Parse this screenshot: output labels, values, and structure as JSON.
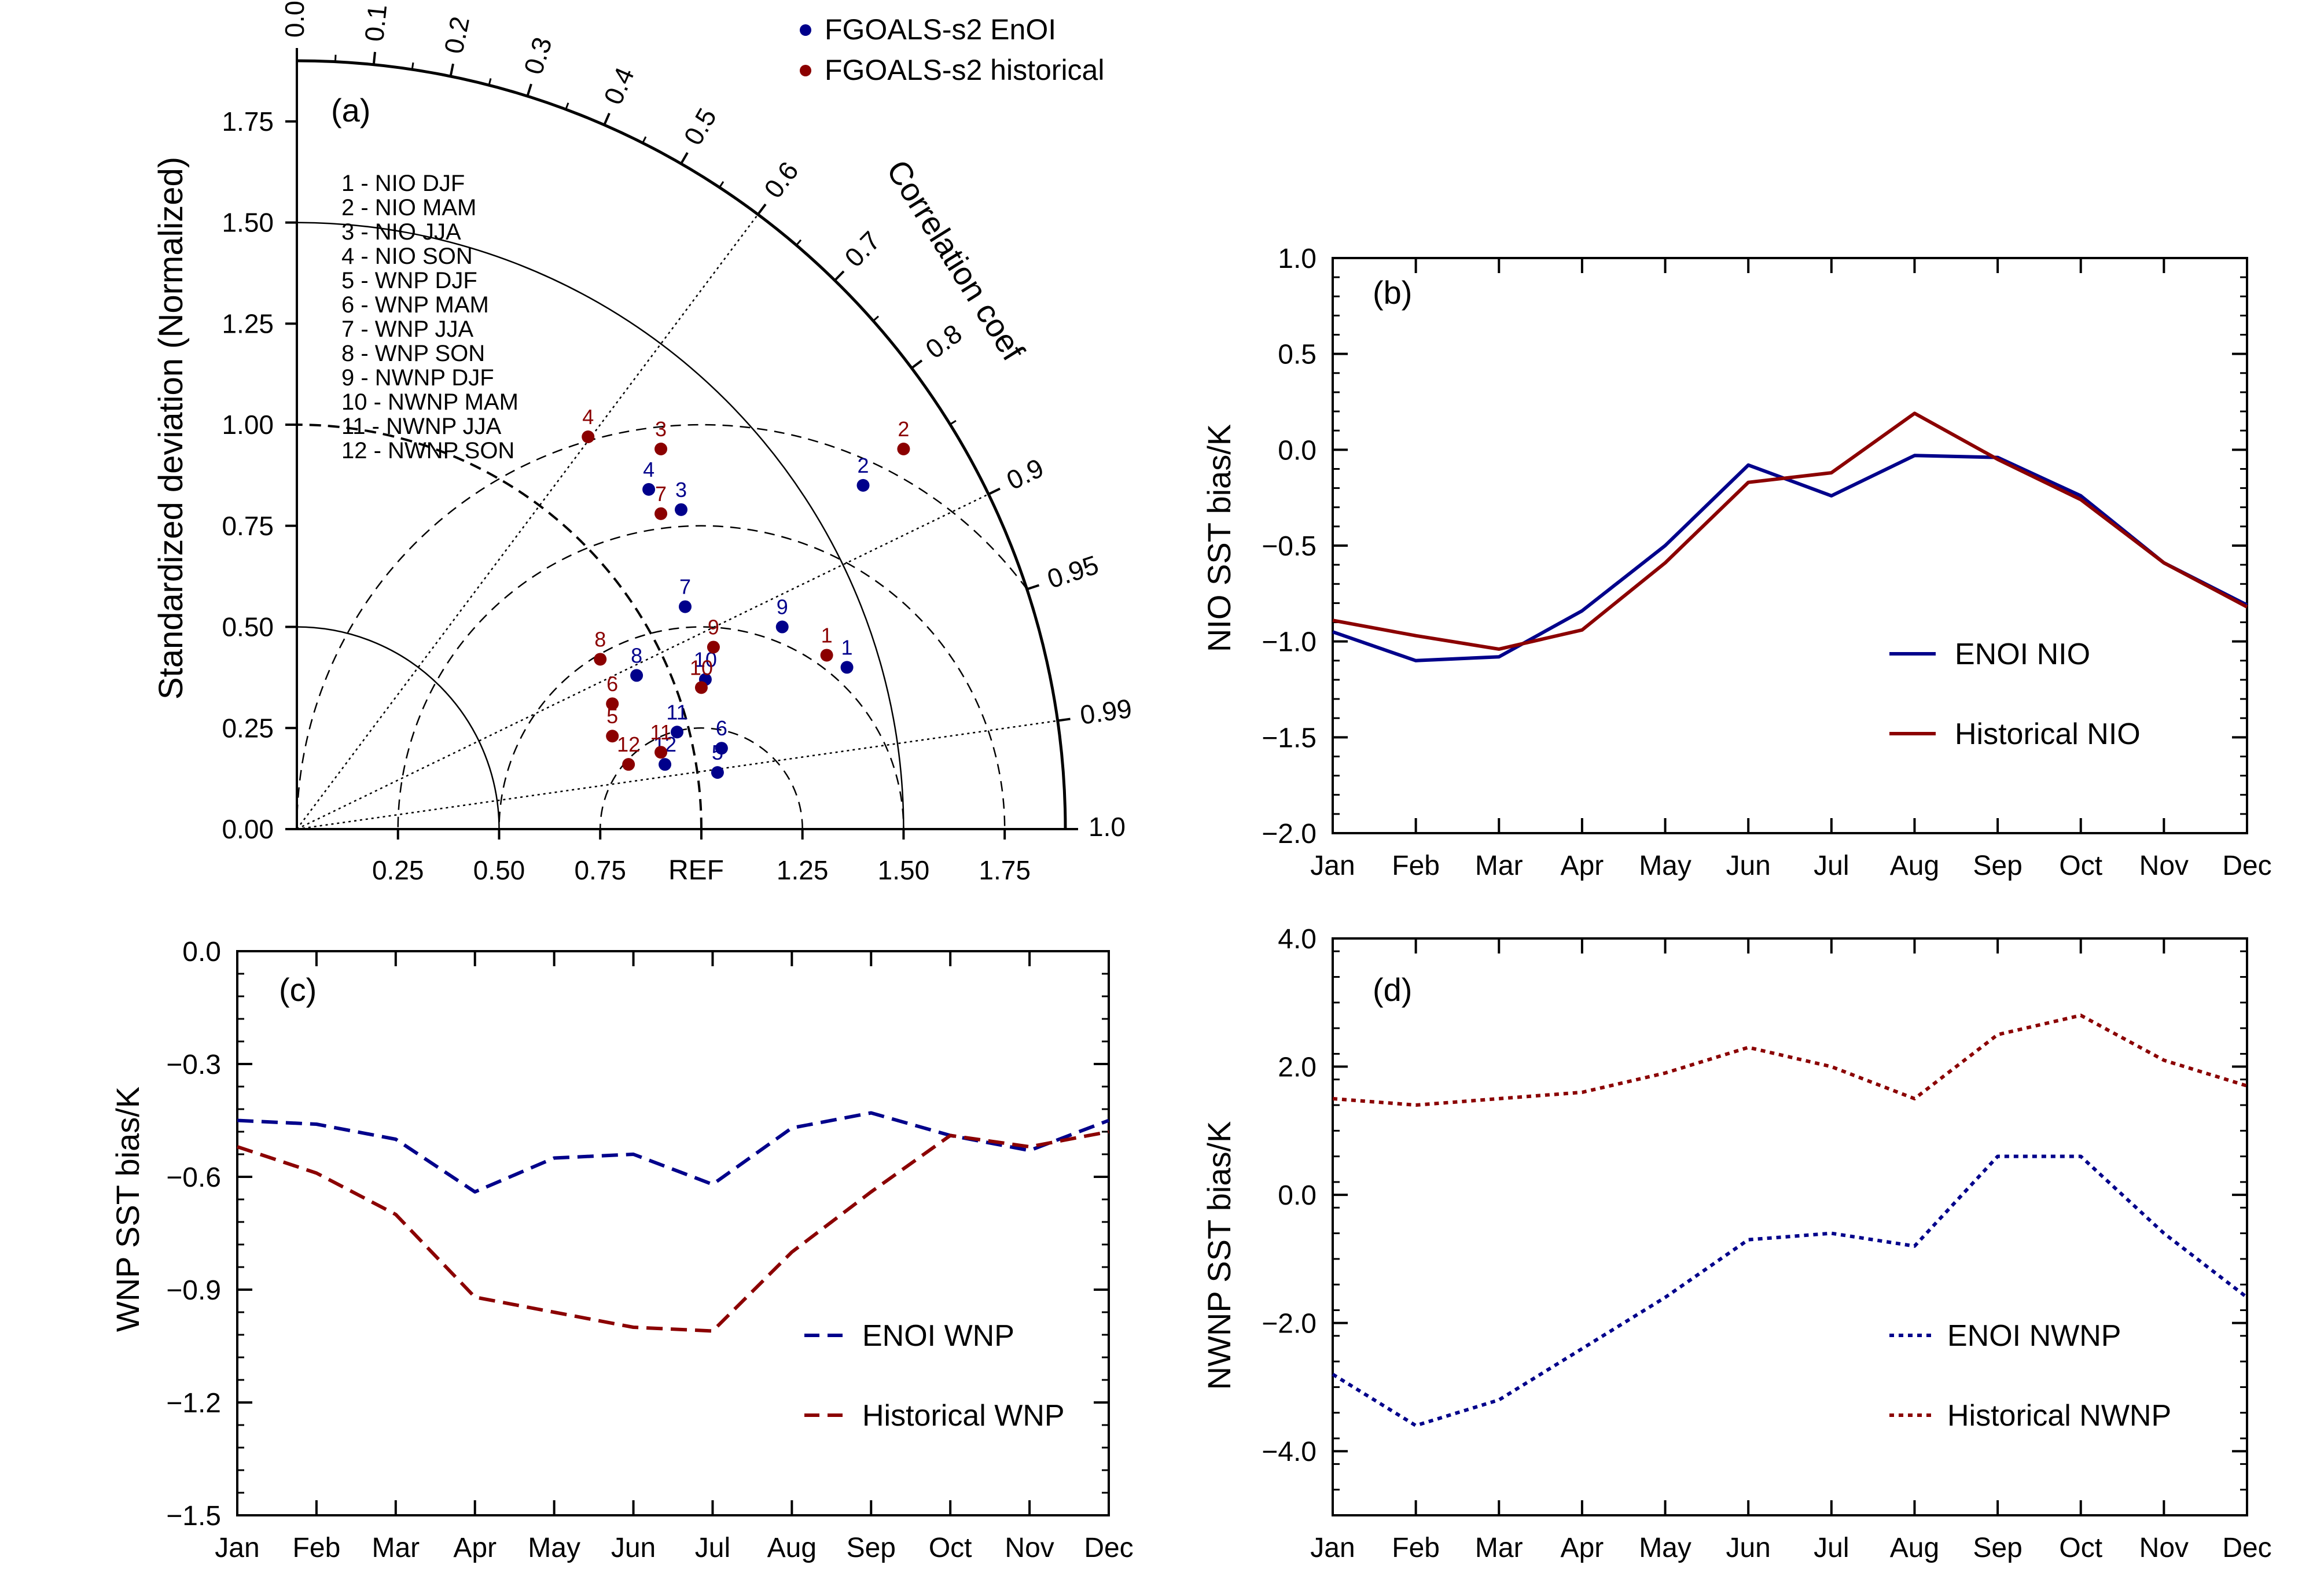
{
  "chart_data": [
    {
      "type": "taylor",
      "panel_label": "(a)",
      "ylabel": "Standardized deviation (Normalized)",
      "arc_label": "Correlation coef",
      "ref_label": "REF",
      "std_max": 1.9,
      "std_ticks": [
        "0.00",
        "0.25",
        "0.50",
        "0.75",
        "1.00",
        "1.25",
        "1.50",
        "1.75"
      ],
      "x_ticks": [
        "0.25",
        "0.50",
        "0.75",
        "REF",
        "1.25",
        "1.50",
        "1.75"
      ],
      "corr_ticks": [
        0.0,
        0.1,
        0.2,
        0.3,
        0.4,
        0.5,
        0.6,
        0.7,
        0.8,
        0.9,
        0.95,
        0.99,
        1.0
      ],
      "corr_tick_labels": [
        "0.0",
        "0.1",
        "0.2",
        "0.3",
        "0.4",
        "0.5",
        "0.6",
        "0.7",
        "0.8",
        "0.9",
        "0.95",
        "0.99",
        "1.0"
      ],
      "corr_rays": [
        0.6,
        0.9,
        0.99
      ],
      "std_arcs": [
        0.5,
        1.0,
        1.5
      ],
      "rms_circles": [
        0.25,
        0.5,
        0.75,
        1.0
      ],
      "legend": [
        {
          "name": "FGOALS-s2 EnOI",
          "color": "#00008b"
        },
        {
          "name": "FGOALS-s2 historical",
          "color": "#8b0000"
        }
      ],
      "case_list": [
        "1 - NIO DJF",
        "2 - NIO MAM",
        "3 - NIO JJA",
        "4 - NIO SON",
        "5 - WNP DJF",
        "6 - WNP MAM",
        "7 - WNP JJA",
        "8 - WNP SON",
        "9 - NWNP DJF",
        "10 - NWNP MAM",
        "11 - NWNP JJA",
        "12 - NWNP SON"
      ],
      "series": [
        {
          "name": "FGOALS-s2 EnOI",
          "color": "#00008b",
          "points": [
            {
              "label": "1",
              "x": 1.36,
              "y": 0.4
            },
            {
              "label": "2",
              "x": 1.4,
              "y": 0.85
            },
            {
              "label": "3",
              "x": 0.95,
              "y": 0.79
            },
            {
              "label": "4",
              "x": 0.87,
              "y": 0.84
            },
            {
              "label": "5",
              "x": 1.04,
              "y": 0.14
            },
            {
              "label": "6",
              "x": 1.05,
              "y": 0.2
            },
            {
              "label": "7",
              "x": 0.96,
              "y": 0.55
            },
            {
              "label": "8",
              "x": 0.84,
              "y": 0.38
            },
            {
              "label": "9",
              "x": 1.2,
              "y": 0.5
            },
            {
              "label": "10",
              "x": 1.01,
              "y": 0.37
            },
            {
              "label": "11",
              "x": 0.94,
              "y": 0.24
            },
            {
              "label": "12",
              "x": 0.91,
              "y": 0.16
            }
          ]
        },
        {
          "name": "FGOALS-s2 historical",
          "color": "#8b0000",
          "points": [
            {
              "label": "1",
              "x": 1.31,
              "y": 0.43
            },
            {
              "label": "2",
              "x": 1.5,
              "y": 0.94
            },
            {
              "label": "3",
              "x": 0.9,
              "y": 0.94
            },
            {
              "label": "4",
              "x": 0.72,
              "y": 0.97
            },
            {
              "label": "5",
              "x": 0.78,
              "y": 0.23
            },
            {
              "label": "6",
              "x": 0.78,
              "y": 0.31
            },
            {
              "label": "7",
              "x": 0.9,
              "y": 0.78
            },
            {
              "label": "8",
              "x": 0.75,
              "y": 0.42
            },
            {
              "label": "9",
              "x": 1.03,
              "y": 0.45
            },
            {
              "label": "10",
              "x": 1.0,
              "y": 0.35
            },
            {
              "label": "11",
              "x": 0.9,
              "y": 0.19
            },
            {
              "label": "12",
              "x": 0.82,
              "y": 0.16
            }
          ]
        }
      ]
    },
    {
      "type": "line",
      "panel_label": "(b)",
      "categories": [
        "Jan",
        "Feb",
        "Mar",
        "Apr",
        "May",
        "Jun",
        "Jul",
        "Aug",
        "Sep",
        "Oct",
        "Nov",
        "Dec"
      ],
      "ylabel": "NIO SST bias/K",
      "ylim": [
        -2.0,
        1.0
      ],
      "yticks": [
        "-2.0",
        "-1.5",
        "-1.0",
        "-0.5",
        "0.0",
        "0.5",
        "1.0"
      ],
      "series": [
        {
          "name": "ENOI NIO",
          "color": "#00008b",
          "dash": "solid",
          "values": [
            -0.95,
            -1.1,
            -1.08,
            -0.84,
            -0.5,
            -0.08,
            -0.24,
            -0.03,
            -0.04,
            -0.24,
            -0.59,
            -0.81
          ]
        },
        {
          "name": "Historical NIO",
          "color": "#8b0000",
          "dash": "solid",
          "values": [
            -0.89,
            -0.97,
            -1.04,
            -0.94,
            -0.59,
            -0.17,
            -0.12,
            0.19,
            -0.05,
            -0.26,
            -0.59,
            -0.82
          ]
        }
      ]
    },
    {
      "type": "line",
      "panel_label": "(c)",
      "categories": [
        "Jan",
        "Feb",
        "Mar",
        "Apr",
        "May",
        "Jun",
        "Jul",
        "Aug",
        "Sep",
        "Oct",
        "Nov",
        "Dec"
      ],
      "ylabel": "WNP SST bias/K",
      "ylim": [
        -1.5,
        0.0
      ],
      "yticks": [
        "-1.5",
        "-1.2",
        "-0.9",
        "-0.6",
        "-0.3",
        "0.0"
      ],
      "series": [
        {
          "name": "ENOI WNP",
          "color": "#00008b",
          "dash": "dashed",
          "values": [
            -0.45,
            -0.46,
            -0.5,
            -0.64,
            -0.55,
            -0.54,
            -0.62,
            -0.47,
            -0.43,
            -0.49,
            -0.53,
            -0.45
          ]
        },
        {
          "name": "Historical WNP",
          "color": "#8b0000",
          "dash": "dashed",
          "values": [
            -0.52,
            -0.59,
            -0.7,
            -0.92,
            -0.96,
            -1.0,
            -1.01,
            -0.8,
            -0.64,
            -0.49,
            -0.52,
            -0.48
          ]
        }
      ]
    },
    {
      "type": "line",
      "panel_label": "(d)",
      "categories": [
        "Jan",
        "Feb",
        "Mar",
        "Apr",
        "May",
        "Jun",
        "Jul",
        "Aug",
        "Sep",
        "Oct",
        "Nov",
        "Dec"
      ],
      "ylabel": "NWNP SST bias/K",
      "ylim": [
        -5.0,
        4.0
      ],
      "yticks": [
        "-4.0",
        "-2.0",
        "0.0",
        "2.0",
        "4.0"
      ],
      "series": [
        {
          "name": "ENOI NWNP",
          "color": "#00008b",
          "dash": "dotted",
          "values": [
            -2.8,
            -3.6,
            -3.2,
            -2.4,
            -1.6,
            -0.7,
            -0.6,
            -0.8,
            0.6,
            0.6,
            -0.6,
            -1.6
          ]
        },
        {
          "name": "Historical NWNP",
          "color": "#8b0000",
          "dash": "dotted",
          "values": [
            1.5,
            1.4,
            1.5,
            1.6,
            1.9,
            2.3,
            2.0,
            1.5,
            2.5,
            2.8,
            2.1,
            1.7
          ]
        }
      ]
    }
  ]
}
